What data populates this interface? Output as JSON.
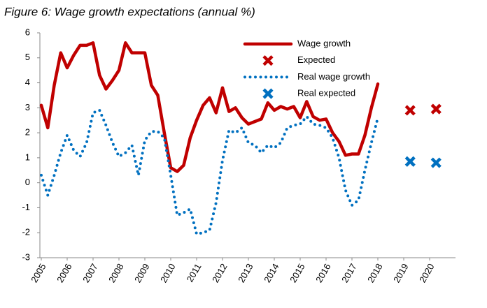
{
  "chart_data": {
    "type": "line",
    "title": "Figure 6: Wage growth expectations (annual %)",
    "x": [
      2005,
      2005.25,
      2005.5,
      2005.75,
      2006,
      2006.25,
      2006.5,
      2006.75,
      2007,
      2007.25,
      2007.5,
      2007.75,
      2008,
      2008.25,
      2008.5,
      2008.75,
      2009,
      2009.25,
      2009.5,
      2009.75,
      2010,
      2010.25,
      2010.5,
      2010.75,
      2011,
      2011.25,
      2011.5,
      2011.75,
      2012,
      2012.25,
      2012.5,
      2012.75,
      2013,
      2013.25,
      2013.5,
      2013.75,
      2014,
      2014.25,
      2014.5,
      2014.75,
      2015,
      2015.25,
      2015.5,
      2015.75,
      2016,
      2016.25,
      2016.5,
      2016.75,
      2017,
      2017.25,
      2017.5,
      2017.75,
      2018
    ],
    "series": [
      {
        "name": "Wage growth",
        "color": "#c00000",
        "style": "solid",
        "values": [
          3.1,
          2.2,
          3.9,
          5.2,
          4.6,
          5.1,
          5.5,
          5.5,
          5.6,
          4.3,
          3.75,
          4.1,
          4.5,
          5.6,
          5.2,
          5.2,
          5.2,
          3.9,
          3.5,
          2.0,
          0.6,
          0.45,
          0.7,
          1.8,
          2.5,
          3.1,
          3.4,
          2.8,
          3.8,
          2.85,
          3.0,
          2.6,
          2.35,
          2.45,
          2.55,
          3.2,
          2.9,
          3.05,
          2.95,
          3.05,
          2.6,
          3.25,
          2.65,
          2.5,
          2.55,
          2.0,
          1.65,
          1.1,
          1.15,
          1.15,
          1.9,
          3.0,
          3.95
        ]
      },
      {
        "name": "Expected",
        "color": "#c00000",
        "style": "marker",
        "x": [
          2019.25,
          2020.25
        ],
        "values": [
          2.9,
          2.95
        ]
      },
      {
        "name": "Real wage growth",
        "color": "#0070c0",
        "style": "dotted",
        "values": [
          0.3,
          -0.5,
          0.3,
          1.2,
          1.9,
          1.3,
          1.05,
          1.6,
          2.8,
          2.9,
          2.3,
          1.6,
          1.05,
          1.2,
          1.5,
          0.3,
          1.7,
          2.05,
          2.05,
          1.8,
          0.3,
          -1.3,
          -1.2,
          -1.05,
          -2.05,
          -2.0,
          -1.9,
          -0.8,
          0.9,
          2.1,
          2.0,
          2.2,
          1.6,
          1.5,
          1.2,
          1.5,
          1.4,
          1.6,
          2.2,
          2.3,
          2.35,
          2.65,
          2.35,
          2.3,
          2.2,
          1.8,
          1.0,
          -0.3,
          -0.9,
          -0.7,
          0.5,
          1.6,
          2.6
        ]
      },
      {
        "name": "Real expected",
        "color": "#0070c0",
        "style": "marker",
        "x": [
          2019.25,
          2020.25
        ],
        "values": [
          0.85,
          0.8
        ]
      }
    ],
    "xlim": [
      2005,
      2021
    ],
    "xticks": [
      2005,
      2006,
      2007,
      2008,
      2009,
      2010,
      2011,
      2012,
      2013,
      2014,
      2015,
      2016,
      2017,
      2018,
      2019,
      2020
    ],
    "ylim": [
      -3,
      6
    ],
    "yticks": [
      -3,
      -2,
      -1,
      0,
      1,
      2,
      3,
      4,
      5,
      6
    ]
  }
}
